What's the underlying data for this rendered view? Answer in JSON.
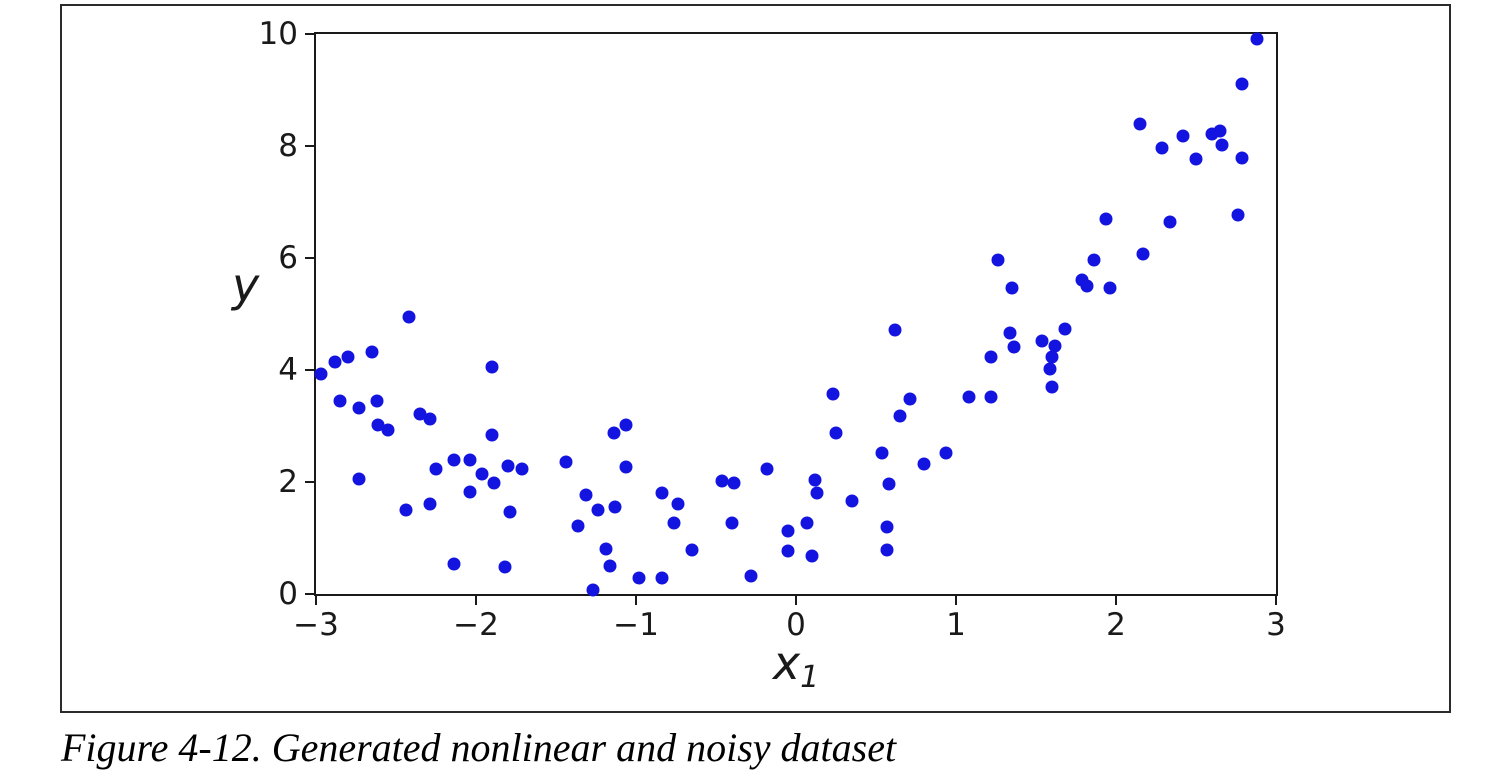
{
  "figure": {
    "caption": "Figure 4-12. Generated nonlinear and noisy dataset"
  },
  "chart_data": {
    "type": "scatter",
    "title": "",
    "xlabel": "x",
    "xlabel_subscript": "1",
    "ylabel": "y",
    "xlim": [
      -3,
      3
    ],
    "ylim": [
      0,
      10
    ],
    "xtick_values": [
      -3,
      -2,
      -1,
      0,
      1,
      2,
      3
    ],
    "xtick_labels": [
      "−3",
      "−2",
      "−1",
      "0",
      "1",
      "2",
      "3"
    ],
    "ytick_values": [
      0,
      2,
      4,
      6,
      8,
      10
    ],
    "ytick_labels": [
      "0",
      "2",
      "4",
      "6",
      "8",
      "10"
    ],
    "grid": false,
    "legend_position": "none",
    "marker": "circle",
    "marker_size_px": 13,
    "marker_color": "#1414e0",
    "spine_color": "#1a1a1a",
    "points": [
      [
        -2.97,
        3.93
      ],
      [
        -2.88,
        4.15
      ],
      [
        -2.8,
        4.23
      ],
      [
        -2.65,
        4.32
      ],
      [
        -2.42,
        4.94
      ],
      [
        -2.85,
        3.45
      ],
      [
        -2.73,
        3.33
      ],
      [
        -2.62,
        3.45
      ],
      [
        -2.61,
        3.02
      ],
      [
        -2.55,
        2.93
      ],
      [
        -2.35,
        3.21
      ],
      [
        -2.29,
        3.12
      ],
      [
        -1.9,
        4.06
      ],
      [
        -1.9,
        2.84
      ],
      [
        -2.73,
        2.05
      ],
      [
        -2.44,
        1.5
      ],
      [
        -2.29,
        1.61
      ],
      [
        -2.25,
        2.23
      ],
      [
        -2.14,
        2.4
      ],
      [
        -2.04,
        2.4
      ],
      [
        -1.96,
        2.14
      ],
      [
        -1.89,
        1.99
      ],
      [
        -2.04,
        1.83
      ],
      [
        -1.8,
        2.29
      ],
      [
        -1.71,
        2.23
      ],
      [
        -1.79,
        1.47
      ],
      [
        -2.14,
        0.53
      ],
      [
        -1.82,
        0.49
      ],
      [
        -1.44,
        2.36
      ],
      [
        -1.36,
        1.22
      ],
      [
        -1.31,
        1.77
      ],
      [
        -1.24,
        1.5
      ],
      [
        -1.13,
        1.56
      ],
      [
        -1.14,
        2.87
      ],
      [
        -1.06,
        3.02
      ],
      [
        -1.06,
        2.26
      ],
      [
        -1.19,
        0.8
      ],
      [
        -1.16,
        0.5
      ],
      [
        -1.27,
        0.07
      ],
      [
        -0.98,
        0.28
      ],
      [
        -0.84,
        0.28
      ],
      [
        -0.84,
        1.8
      ],
      [
        -0.74,
        1.6
      ],
      [
        -0.76,
        1.26
      ],
      [
        -0.65,
        0.79
      ],
      [
        -0.46,
        2.02
      ],
      [
        -0.39,
        1.99
      ],
      [
        -0.18,
        2.23
      ],
      [
        -0.4,
        1.26
      ],
      [
        -0.28,
        0.32
      ],
      [
        -0.05,
        1.13
      ],
      [
        -0.05,
        0.77
      ],
      [
        0.07,
        1.27
      ],
      [
        0.1,
        0.68
      ],
      [
        0.12,
        2.04
      ],
      [
        0.13,
        1.8
      ],
      [
        0.23,
        3.57
      ],
      [
        0.25,
        2.88
      ],
      [
        0.35,
        1.66
      ],
      [
        0.57,
        1.2
      ],
      [
        0.57,
        0.79
      ],
      [
        0.58,
        1.97
      ],
      [
        0.62,
        4.71
      ],
      [
        0.65,
        3.17
      ],
      [
        0.71,
        3.48
      ],
      [
        0.8,
        2.32
      ],
      [
        0.94,
        2.52
      ],
      [
        0.54,
        2.52
      ],
      [
        1.08,
        3.51
      ],
      [
        1.22,
        3.51
      ],
      [
        1.22,
        4.24
      ],
      [
        1.26,
        5.96
      ],
      [
        1.34,
        4.66
      ],
      [
        1.36,
        4.41
      ],
      [
        1.35,
        5.46
      ],
      [
        1.54,
        4.51
      ],
      [
        1.62,
        4.42
      ],
      [
        1.6,
        4.23
      ],
      [
        1.59,
        4.02
      ],
      [
        1.6,
        3.7
      ],
      [
        1.68,
        4.73
      ],
      [
        1.79,
        5.61
      ],
      [
        1.82,
        5.5
      ],
      [
        1.86,
        5.96
      ],
      [
        1.94,
        6.69
      ],
      [
        1.96,
        5.46
      ],
      [
        2.15,
        8.39
      ],
      [
        2.17,
        6.07
      ],
      [
        2.29,
        7.96
      ],
      [
        2.34,
        6.65
      ],
      [
        2.42,
        8.18
      ],
      [
        2.5,
        7.77
      ],
      [
        2.6,
        8.22
      ],
      [
        2.65,
        8.27
      ],
      [
        2.66,
        8.02
      ],
      [
        2.76,
        6.77
      ],
      [
        2.79,
        9.1
      ],
      [
        2.79,
        7.78
      ],
      [
        2.88,
        9.91
      ]
    ]
  }
}
